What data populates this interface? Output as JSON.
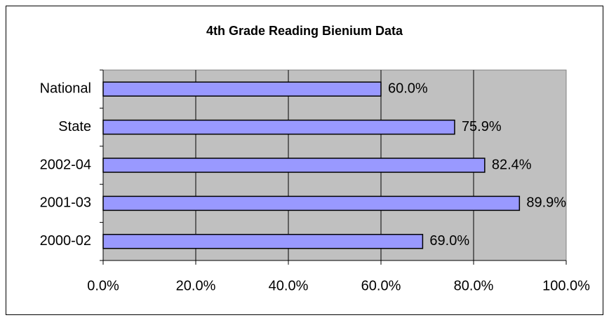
{
  "chart_data": {
    "type": "barh",
    "title": "4th Grade Reading Bienium Data",
    "categories": [
      "National",
      "State",
      "2002-04",
      "2001-03",
      "2000-02"
    ],
    "values": [
      60.0,
      75.9,
      82.4,
      89.9,
      69.0
    ],
    "value_labels": [
      "60.0%",
      "75.9%",
      "82.4%",
      "89.9%",
      "69.0%"
    ],
    "color": "#9999ff",
    "xlim": [
      0,
      100
    ],
    "xticks": [
      {
        "value": 0,
        "label": "0.0%"
      },
      {
        "value": 20,
        "label": "20.0%"
      },
      {
        "value": 40,
        "label": "40.0%"
      },
      {
        "value": 60,
        "label": "60.0%"
      },
      {
        "value": 80,
        "label": "80.0%"
      },
      {
        "value": 100,
        "label": "100.0%"
      }
    ],
    "grid": true
  }
}
